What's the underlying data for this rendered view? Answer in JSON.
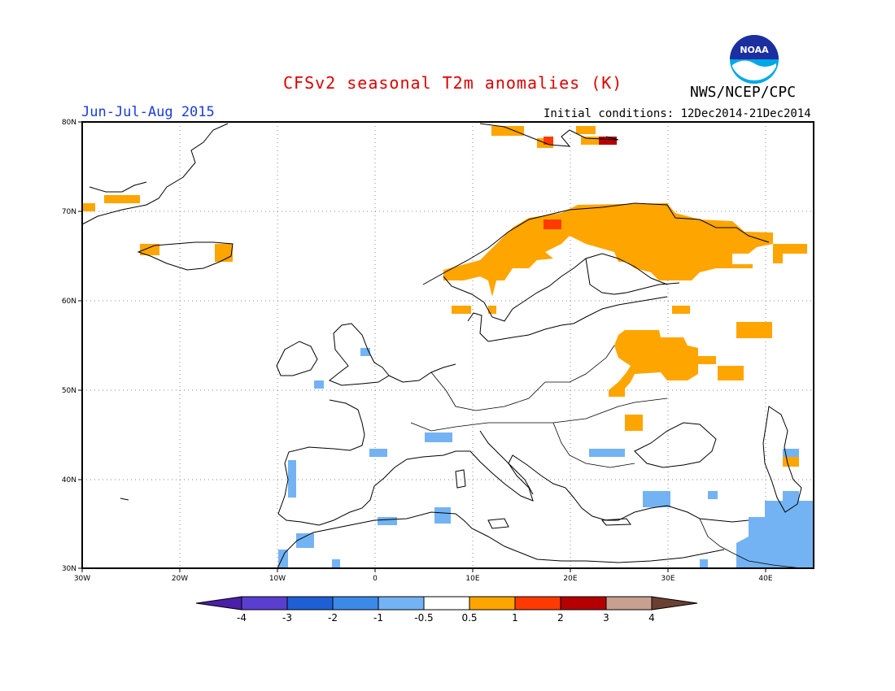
{
  "header": {
    "title": "CFSv2 seasonal T2m anomalies (K)",
    "agency": "NWS/NCEP/CPC",
    "period": "Jun-Jul-Aug 2015",
    "initial_conditions": "Initial conditions: 12Dec2014-21Dec2014",
    "logo_text": "NOAA"
  },
  "map": {
    "lat_labels": [
      "80N",
      "70N",
      "60N",
      "50N",
      "40N",
      "30N"
    ],
    "lon_labels": [
      "30W",
      "20W",
      "10W",
      "0",
      "10E",
      "20E",
      "30E",
      "40E"
    ],
    "lat_range": [
      30,
      80
    ],
    "lon_range": [
      -30,
      45
    ]
  },
  "colorbar": {
    "labels": [
      "-4",
      "-3",
      "-2",
      "-1",
      "-0.5",
      "0.5",
      "1",
      "2",
      "3",
      "4"
    ],
    "colors": [
      "#4b1fa8",
      "#5a3ed0",
      "#1f5fd6",
      "#3c8ae8",
      "#73b3f3",
      "#ffffff",
      "#ffa500",
      "#ff3a00",
      "#b40000",
      "#c8a090",
      "#6b4030"
    ]
  },
  "anomaly_colors": {
    "warm_05_1": "#ffa500",
    "warm_1_2": "#ff3a00",
    "warm_2_3": "#b40000",
    "cool_m1_m05": "#73b3f3"
  }
}
